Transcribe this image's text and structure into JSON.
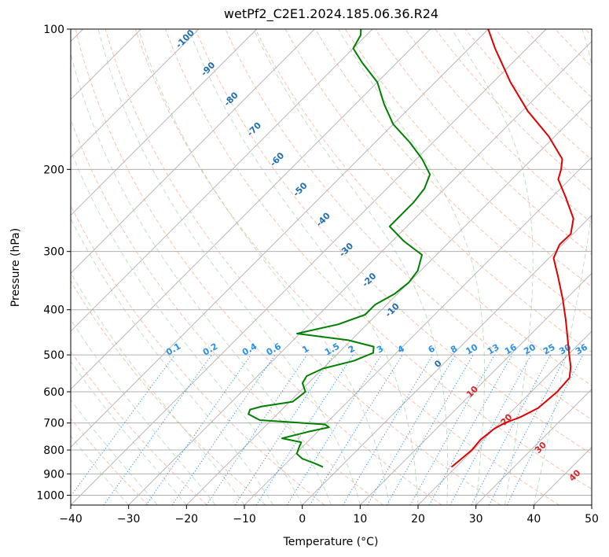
{
  "chart_data": {
    "type": "line",
    "subtype": "skew-T log-P diagram",
    "title": "wetPf2_C2E1.2024.185.06.36.R24",
    "xlabel": "Temperature (°C)",
    "ylabel": "Pressure (hPa)",
    "xlim": [
      -40,
      50
    ],
    "ylim": [
      1050,
      100
    ],
    "y_scale": "log",
    "grid": true,
    "x_ticks": [
      -40,
      -30,
      -20,
      -10,
      0,
      10,
      20,
      30,
      40,
      50
    ],
    "y_ticks": [
      100,
      200,
      300,
      400,
      500,
      600,
      700,
      800,
      900,
      1000
    ],
    "dry_adiabat_labels": [
      "-100",
      "-90",
      "-80",
      "-70",
      "-60",
      "-50",
      "-40",
      "-30",
      "-20",
      "-10",
      "0",
      "10",
      "20",
      "30",
      "40"
    ],
    "mixing_ratio_labels": [
      "0.1",
      "0.2",
      "0.4",
      "0.6",
      "1",
      "1.5",
      "2",
      "3",
      "4",
      "6",
      "8",
      "10",
      "13",
      "16",
      "20",
      "25",
      "30",
      "36"
    ],
    "series": [
      {
        "role": "temperature",
        "color": "#e00000",
        "points": [
          [
            870,
            19.2
          ],
          [
            850,
            19.4
          ],
          [
            800,
            19.8
          ],
          [
            760,
            19.5
          ],
          [
            720,
            20.0
          ],
          [
            700,
            20.8
          ],
          [
            680,
            22.5
          ],
          [
            650,
            24.0
          ],
          [
            600,
            24.5
          ],
          [
            560,
            24.2
          ],
          [
            530,
            22.5
          ],
          [
            500,
            20.2
          ],
          [
            460,
            17.0
          ],
          [
            420,
            13.5
          ],
          [
            380,
            9.5
          ],
          [
            340,
            4.8
          ],
          [
            310,
            0.8
          ],
          [
            290,
            -0.5
          ],
          [
            275,
            -0.4
          ],
          [
            255,
            -2.6
          ],
          [
            230,
            -7.5
          ],
          [
            210,
            -12.0
          ],
          [
            200,
            -13.2
          ],
          [
            190,
            -14.8
          ],
          [
            170,
            -21.0
          ],
          [
            150,
            -29.0
          ],
          [
            130,
            -37.0
          ],
          [
            110,
            -45.5
          ],
          [
            100,
            -50.0
          ]
        ]
      },
      {
        "role": "dewpoint",
        "color": "#008000",
        "points": [
          [
            870,
            -3.0
          ],
          [
            855,
            -5.0
          ],
          [
            835,
            -8.0
          ],
          [
            815,
            -9.8
          ],
          [
            790,
            -10.5
          ],
          [
            770,
            -11.0
          ],
          [
            755,
            -15.0
          ],
          [
            730,
            -11.5
          ],
          [
            715,
            -8.8
          ],
          [
            705,
            -10.0
          ],
          [
            690,
            -22.0
          ],
          [
            670,
            -25.0
          ],
          [
            655,
            -25.5
          ],
          [
            645,
            -24.0
          ],
          [
            630,
            -19.5
          ],
          [
            600,
            -19.0
          ],
          [
            575,
            -21.0
          ],
          [
            555,
            -21.5
          ],
          [
            535,
            -20.0
          ],
          [
            515,
            -16.0
          ],
          [
            495,
            -14.0
          ],
          [
            480,
            -15.0
          ],
          [
            465,
            -20.5
          ],
          [
            450,
            -30.5
          ],
          [
            430,
            -25.0
          ],
          [
            410,
            -22.0
          ],
          [
            390,
            -22.0
          ],
          [
            370,
            -20.5
          ],
          [
            350,
            -20.0
          ],
          [
            330,
            -20.5
          ],
          [
            305,
            -22.5
          ],
          [
            285,
            -28.0
          ],
          [
            265,
            -33.0
          ],
          [
            250,
            -33.0
          ],
          [
            235,
            -33.0
          ],
          [
            220,
            -33.5
          ],
          [
            205,
            -35.0
          ],
          [
            190,
            -39.0
          ],
          [
            175,
            -44.0
          ],
          [
            160,
            -50.0
          ],
          [
            145,
            -55.0
          ],
          [
            130,
            -60.0
          ],
          [
            118,
            -66.0
          ],
          [
            110,
            -70.0
          ],
          [
            103,
            -71.0
          ],
          [
            100,
            -72.0
          ]
        ]
      }
    ]
  }
}
